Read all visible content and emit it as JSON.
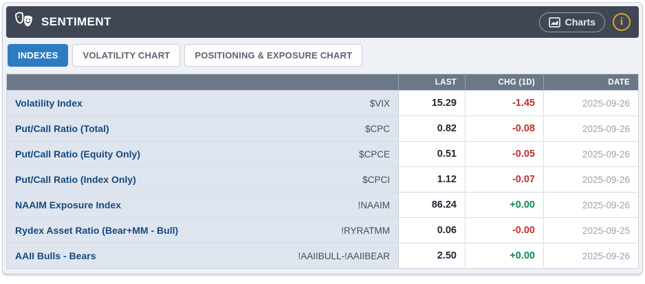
{
  "header": {
    "title": "SENTIMENT",
    "charts_button_label": "Charts",
    "info_glyph": "i"
  },
  "tabs": [
    {
      "label": "INDEXES",
      "active": true
    },
    {
      "label": "VOLATILITY CHART",
      "active": false
    },
    {
      "label": "POSITIONING & EXPOSURE CHART",
      "active": false
    }
  ],
  "table": {
    "columns": {
      "last": "LAST",
      "chg": "CHG (1D)",
      "date": "DATE"
    },
    "rows": [
      {
        "name": "Volatility Index",
        "symbol": "$VIX",
        "last": "15.29",
        "chg": "-1.45",
        "chg_dir": "down",
        "date": "2025-09-26"
      },
      {
        "name": "Put/Call Ratio (Total)",
        "symbol": "$CPC",
        "last": "0.82",
        "chg": "-0.08",
        "chg_dir": "down",
        "date": "2025-09-26"
      },
      {
        "name": "Put/Call Ratio (Equity Only)",
        "symbol": "$CPCE",
        "last": "0.51",
        "chg": "-0.05",
        "chg_dir": "down",
        "date": "2025-09-26"
      },
      {
        "name": "Put/Call Ratio (Index Only)",
        "symbol": "$CPCI",
        "last": "1.12",
        "chg": "-0.07",
        "chg_dir": "down",
        "date": "2025-09-26"
      },
      {
        "name": "NAAIM Exposure Index",
        "symbol": "!NAAIM",
        "last": "86.24",
        "chg": "+0.00",
        "chg_dir": "up",
        "date": "2025-09-26"
      },
      {
        "name": "Rydex Asset Ratio (Bear+MM - Bull)",
        "symbol": "!RYRATMM",
        "last": "0.06",
        "chg": "-0.00",
        "chg_dir": "down",
        "date": "2025-09-25"
      },
      {
        "name": "AAII Bulls - Bears",
        "symbol": "!AAIIBULL-!AAIIBEAR",
        "last": "2.50",
        "chg": "+0.00",
        "chg_dir": "up",
        "date": "2025-09-26"
      }
    ]
  },
  "colors": {
    "panel_header_bg": "#3e4753",
    "table_header_bg": "#6c7887",
    "label_cell_bg": "#dee5ef",
    "active_tab": "#2d7cc2",
    "negative": "#bf2e2e",
    "positive": "#0c8a50",
    "info_icon": "#d7a42c",
    "index_name_text": "#17497e"
  }
}
